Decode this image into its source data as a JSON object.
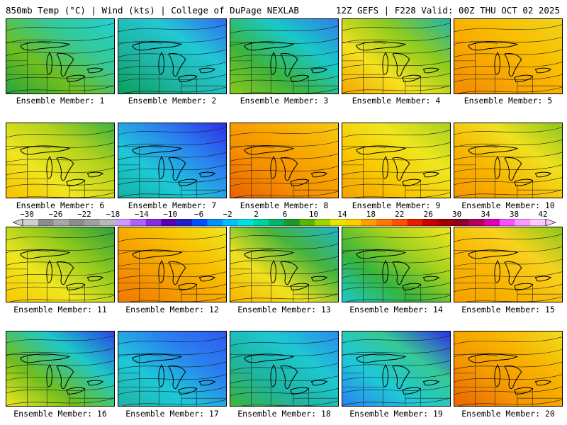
{
  "header": {
    "left": "850mb Temp (°C) | Wind (kts) | College of DuPage NEXLAB",
    "right": "12Z GEFS | F228 Valid: 00Z THU OCT 02 2025"
  },
  "colorbar": {
    "labels": [
      "−30",
      "−26",
      "−22",
      "−18",
      "−14",
      "−10",
      "−6",
      "−2",
      "2",
      "6",
      "10",
      "14",
      "18",
      "22",
      "26",
      "30",
      "34",
      "38",
      "42"
    ],
    "colors": [
      "#d0d0d0",
      "#8c8c8c",
      "#a8a8a8",
      "#8c8c8c",
      "#a0a0a0",
      "#b8b8b8",
      "#cc99ff",
      "#b060ff",
      "#8a2be2",
      "#5a00b4",
      "#2020c8",
      "#0050ff",
      "#0090ff",
      "#00c0ff",
      "#00e0e0",
      "#00d2a0",
      "#00b46e",
      "#1e9628",
      "#5ab400",
      "#a0d200",
      "#e6e600",
      "#ffcc00",
      "#ffa000",
      "#ff7800",
      "#ff5000",
      "#e61e00",
      "#c80000",
      "#a00000",
      "#8c0028",
      "#b4005a",
      "#dc00b4",
      "#ff50ff",
      "#ff96ff",
      "#ffc8ff"
    ]
  },
  "panels": [
    {
      "label": "Ensemble Member: 1",
      "colors": [
        "#2aa43c",
        "#6ebe1e",
        "#36c896",
        "#1ed2d2"
      ]
    },
    {
      "label": "Ensemble Member: 2",
      "colors": [
        "#0a9e5a",
        "#1eb4a0",
        "#22c8d4",
        "#2f6cf0"
      ]
    },
    {
      "label": "Ensemble Member: 3",
      "colors": [
        "#8cc81e",
        "#3cb43c",
        "#19c8c8",
        "#2e7fe8"
      ]
    },
    {
      "label": "Ensemble Member: 4",
      "colors": [
        "#f2a600",
        "#f6e11e",
        "#8ccc1e",
        "#22b4a6"
      ]
    },
    {
      "label": "Ensemble Member: 5",
      "colors": [
        "#f08a00",
        "#f8a600",
        "#f8c000",
        "#f0d21e"
      ]
    },
    {
      "label": "Ensemble Member: 6",
      "colors": [
        "#f8c000",
        "#f0e61e",
        "#b4d21e",
        "#3cb43c"
      ]
    },
    {
      "label": "Ensemble Member: 7",
      "colors": [
        "#12b4a0",
        "#1ec8d8",
        "#2a82f0",
        "#2e2ee6"
      ]
    },
    {
      "label": "Ensemble Member: 8",
      "colors": [
        "#e86200",
        "#f58c00",
        "#f8aa00",
        "#f8c814"
      ]
    },
    {
      "label": "Ensemble Member: 9",
      "colors": [
        "#f5a000",
        "#f8c800",
        "#f0e61e",
        "#a5d21e"
      ]
    },
    {
      "label": "Ensemble Member: 10",
      "colors": [
        "#f59600",
        "#f8b400",
        "#f0e11e",
        "#8cc81e"
      ]
    },
    {
      "label": "Ensemble Member: 11",
      "colors": [
        "#f8c800",
        "#f0e61e",
        "#8cc81e",
        "#2ea03c"
      ]
    },
    {
      "label": "Ensemble Member: 12",
      "colors": [
        "#f07800",
        "#f59a00",
        "#f8c000",
        "#f0e61e"
      ]
    },
    {
      "label": "Ensemble Member: 13",
      "colors": [
        "#f8b400",
        "#f0e11e",
        "#46b43c",
        "#1eb4c8"
      ]
    },
    {
      "label": "Ensemble Member: 14",
      "colors": [
        "#1ec8c8",
        "#36b43c",
        "#a5d21e",
        "#f0e61e"
      ]
    },
    {
      "label": "Ensemble Member: 15",
      "colors": [
        "#f5a000",
        "#f8b400",
        "#f8d21e",
        "#8cc81e"
      ]
    },
    {
      "label": "Ensemble Member: 16",
      "colors": [
        "#f0e61e",
        "#6ebe1e",
        "#1ec8c8",
        "#2846e6"
      ]
    },
    {
      "label": "Ensemble Member: 17",
      "colors": [
        "#1eb4a0",
        "#1ec8d8",
        "#2a82f0",
        "#2e5af0"
      ]
    },
    {
      "label": "Ensemble Member: 18",
      "colors": [
        "#3cb43c",
        "#1eb4a0",
        "#1ec8d2",
        "#2a8cf0"
      ]
    },
    {
      "label": "Ensemble Member: 19",
      "colors": [
        "#2a82f0",
        "#1ec8d8",
        "#36c896",
        "#2e2ee6"
      ]
    },
    {
      "label": "Ensemble Member: 20",
      "colors": [
        "#e86400",
        "#f59600",
        "#f8b400",
        "#f0dc1e"
      ]
    }
  ]
}
